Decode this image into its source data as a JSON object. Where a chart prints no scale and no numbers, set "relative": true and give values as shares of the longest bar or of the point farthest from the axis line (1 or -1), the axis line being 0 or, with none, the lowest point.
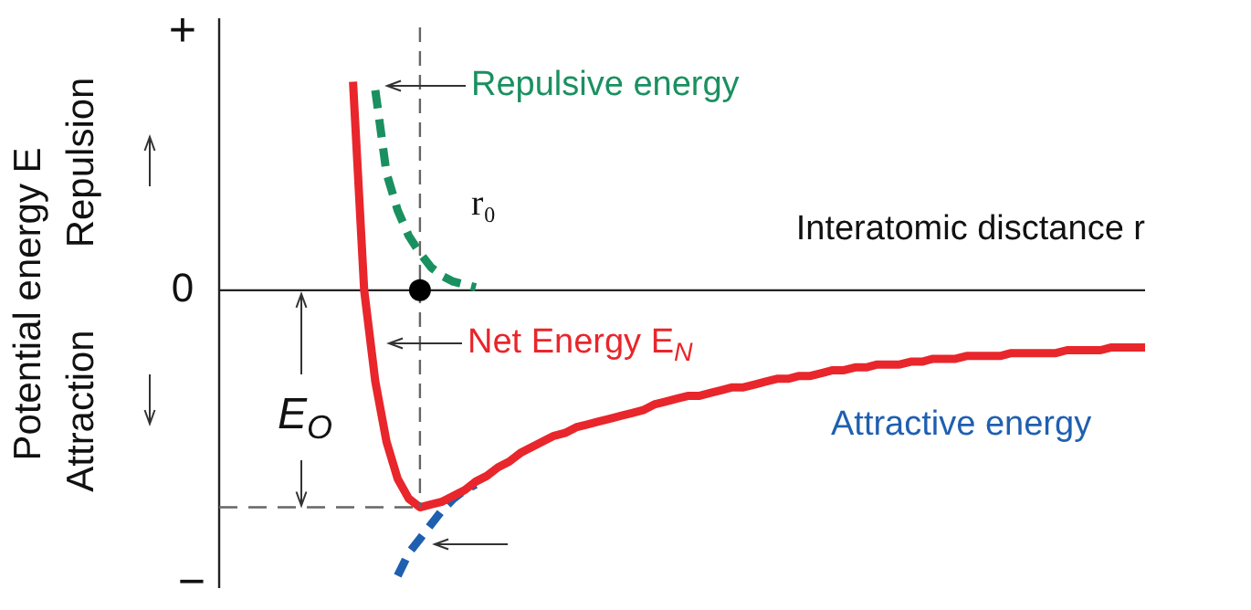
{
  "chart_data": {
    "type": "line",
    "relative": true,
    "xlabel": "Interatomic disctance r",
    "ylabel": "Potential energy E",
    "legend": false,
    "categories": [
      null,
      null,
      null,
      null,
      null,
      null,
      null,
      null,
      null,
      null,
      null,
      null,
      null,
      null,
      null,
      null,
      null,
      null,
      null,
      null,
      null,
      null,
      null,
      null,
      null,
      null,
      null,
      null,
      null,
      null,
      null,
      null,
      null,
      null,
      null,
      null,
      null,
      null,
      null,
      null,
      null,
      null,
      null,
      null,
      null,
      null,
      null,
      null,
      null,
      null,
      null,
      null,
      null,
      null,
      null,
      null,
      null,
      null,
      null,
      null,
      null,
      null,
      null,
      null,
      null,
      null,
      null,
      null,
      null,
      null,
      null,
      null,
      null,
      null,
      null,
      null,
      null,
      null,
      null,
      null,
      null,
      null,
      null,
      null
    ],
    "series": [
      {
        "name": "Repulsive energy",
        "color": "#1a9060",
        "line_style": "dashed",
        "values": [
          null,
          null,
          null,
          null,
          null,
          null,
          null,
          null,
          null,
          null,
          null,
          null,
          null,
          null,
          0.7,
          0.41,
          0.28,
          0.19,
          0.13,
          0.08,
          0.05,
          0.03,
          0.02,
          0.01,
          null,
          null,
          null,
          null,
          null,
          null,
          null,
          null,
          null,
          null,
          null,
          null,
          null,
          null,
          null,
          null,
          null,
          null,
          null,
          null,
          null,
          null,
          null,
          null,
          null,
          null,
          null,
          null,
          null,
          null,
          null,
          null,
          null,
          null,
          null,
          null,
          null,
          null,
          null,
          null,
          null,
          null,
          null,
          null,
          null,
          null,
          null,
          null,
          null,
          null,
          null,
          null,
          null,
          null,
          null,
          null,
          null,
          null,
          null,
          null
        ]
      },
      {
        "name": "Net Energy E$_{N}$",
        "color": "#e8262b",
        "line_style": "solid",
        "values": [
          null,
          null,
          null,
          null,
          null,
          null,
          null,
          null,
          null,
          null,
          null,
          null,
          0.73,
          0.0,
          -0.32,
          -0.53,
          -0.66,
          -0.73,
          -0.76,
          -0.75,
          -0.74,
          -0.72,
          -0.7,
          -0.67,
          -0.65,
          -0.62,
          -0.6,
          -0.57,
          -0.55,
          -0.53,
          -0.51,
          -0.5,
          -0.48,
          -0.47,
          -0.46,
          -0.45,
          -0.44,
          -0.43,
          -0.42,
          -0.4,
          -0.39,
          -0.38,
          -0.37,
          -0.37,
          -0.36,
          -0.35,
          -0.34,
          -0.34,
          -0.33,
          -0.32,
          -0.31,
          -0.31,
          -0.3,
          -0.3,
          -0.29,
          -0.28,
          -0.28,
          -0.27,
          -0.27,
          -0.26,
          -0.26,
          -0.26,
          -0.25,
          -0.25,
          -0.24,
          -0.24,
          -0.24,
          -0.23,
          -0.23,
          -0.23,
          -0.23,
          -0.22,
          -0.22,
          -0.22,
          -0.22,
          -0.22,
          -0.21,
          -0.21,
          -0.21,
          -0.21,
          -0.2,
          -0.2,
          -0.2,
          -0.2
        ]
      },
      {
        "name": "Attractive energy",
        "color": "#1f5fb0",
        "line_style": "dashed",
        "values": [
          null,
          null,
          null,
          null,
          null,
          null,
          null,
          null,
          null,
          null,
          null,
          null,
          null,
          null,
          null,
          null,
          -1,
          -0.92,
          -0.87,
          -0.82,
          -0.77,
          -0.73,
          -0.7,
          -0.68,
          null,
          null,
          null,
          null,
          null,
          null,
          null,
          null,
          null,
          null,
          null,
          null,
          null,
          null,
          null,
          null,
          null,
          null,
          null,
          null,
          null,
          null,
          null,
          null,
          null,
          null,
          null,
          null,
          null,
          null,
          null,
          null,
          null,
          null,
          null,
          null,
          null,
          null,
          null,
          null,
          null,
          null,
          null,
          null,
          null,
          null,
          null,
          null,
          null,
          null,
          null,
          null,
          null,
          null,
          null,
          null,
          null,
          null,
          null,
          null
        ]
      }
    ],
    "ref_lines": [
      {
        "axis": "y",
        "value": -0.76,
        "color": "#666666",
        "line_style": "dashed"
      }
    ],
    "annotations": [
      "+",
      "0",
      "−",
      "Repulsion",
      "Attraction",
      "E$_{O}$",
      "r₀"
    ]
  }
}
